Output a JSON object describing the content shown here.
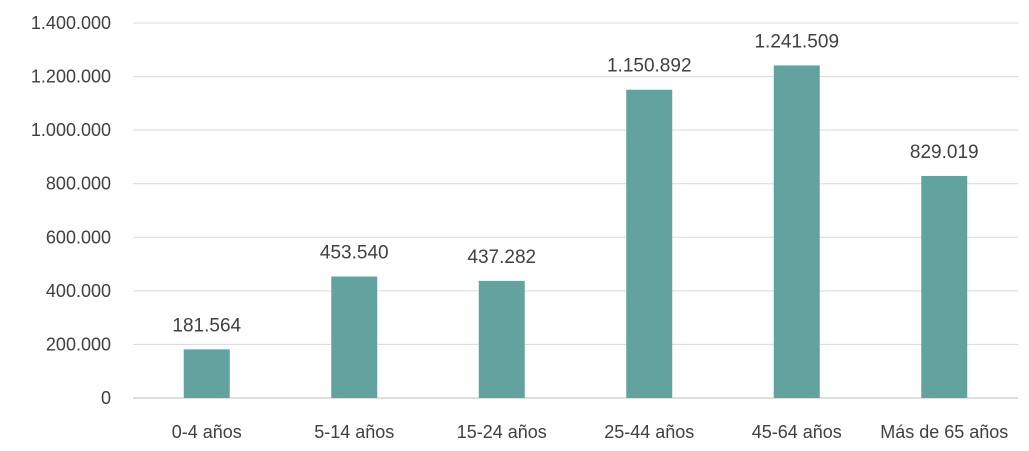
{
  "chart_data": {
    "type": "bar",
    "title": "",
    "xlabel": "",
    "ylabel": "",
    "categories": [
      "0-4 años",
      "5-14 años",
      "15-24 años",
      "25-44 años",
      "45-64 años",
      "Más de 65 años"
    ],
    "values": [
      181564,
      453540,
      437282,
      1150892,
      1241509,
      829019
    ],
    "value_labels": [
      "181.564",
      "453.540",
      "437.282",
      "1.150.892",
      "1.241.509",
      "829.019"
    ],
    "ylim": [
      0,
      1400000
    ],
    "yticks": [
      0,
      200000,
      400000,
      600000,
      800000,
      1000000,
      1200000,
      1400000
    ],
    "ytick_labels": [
      "0",
      "200.000",
      "400.000",
      "600.000",
      "800.000",
      "1.000.000",
      "1.200.000",
      "1.400.000"
    ],
    "grid": true,
    "legend": "none",
    "bar_color": "#62a39f"
  }
}
